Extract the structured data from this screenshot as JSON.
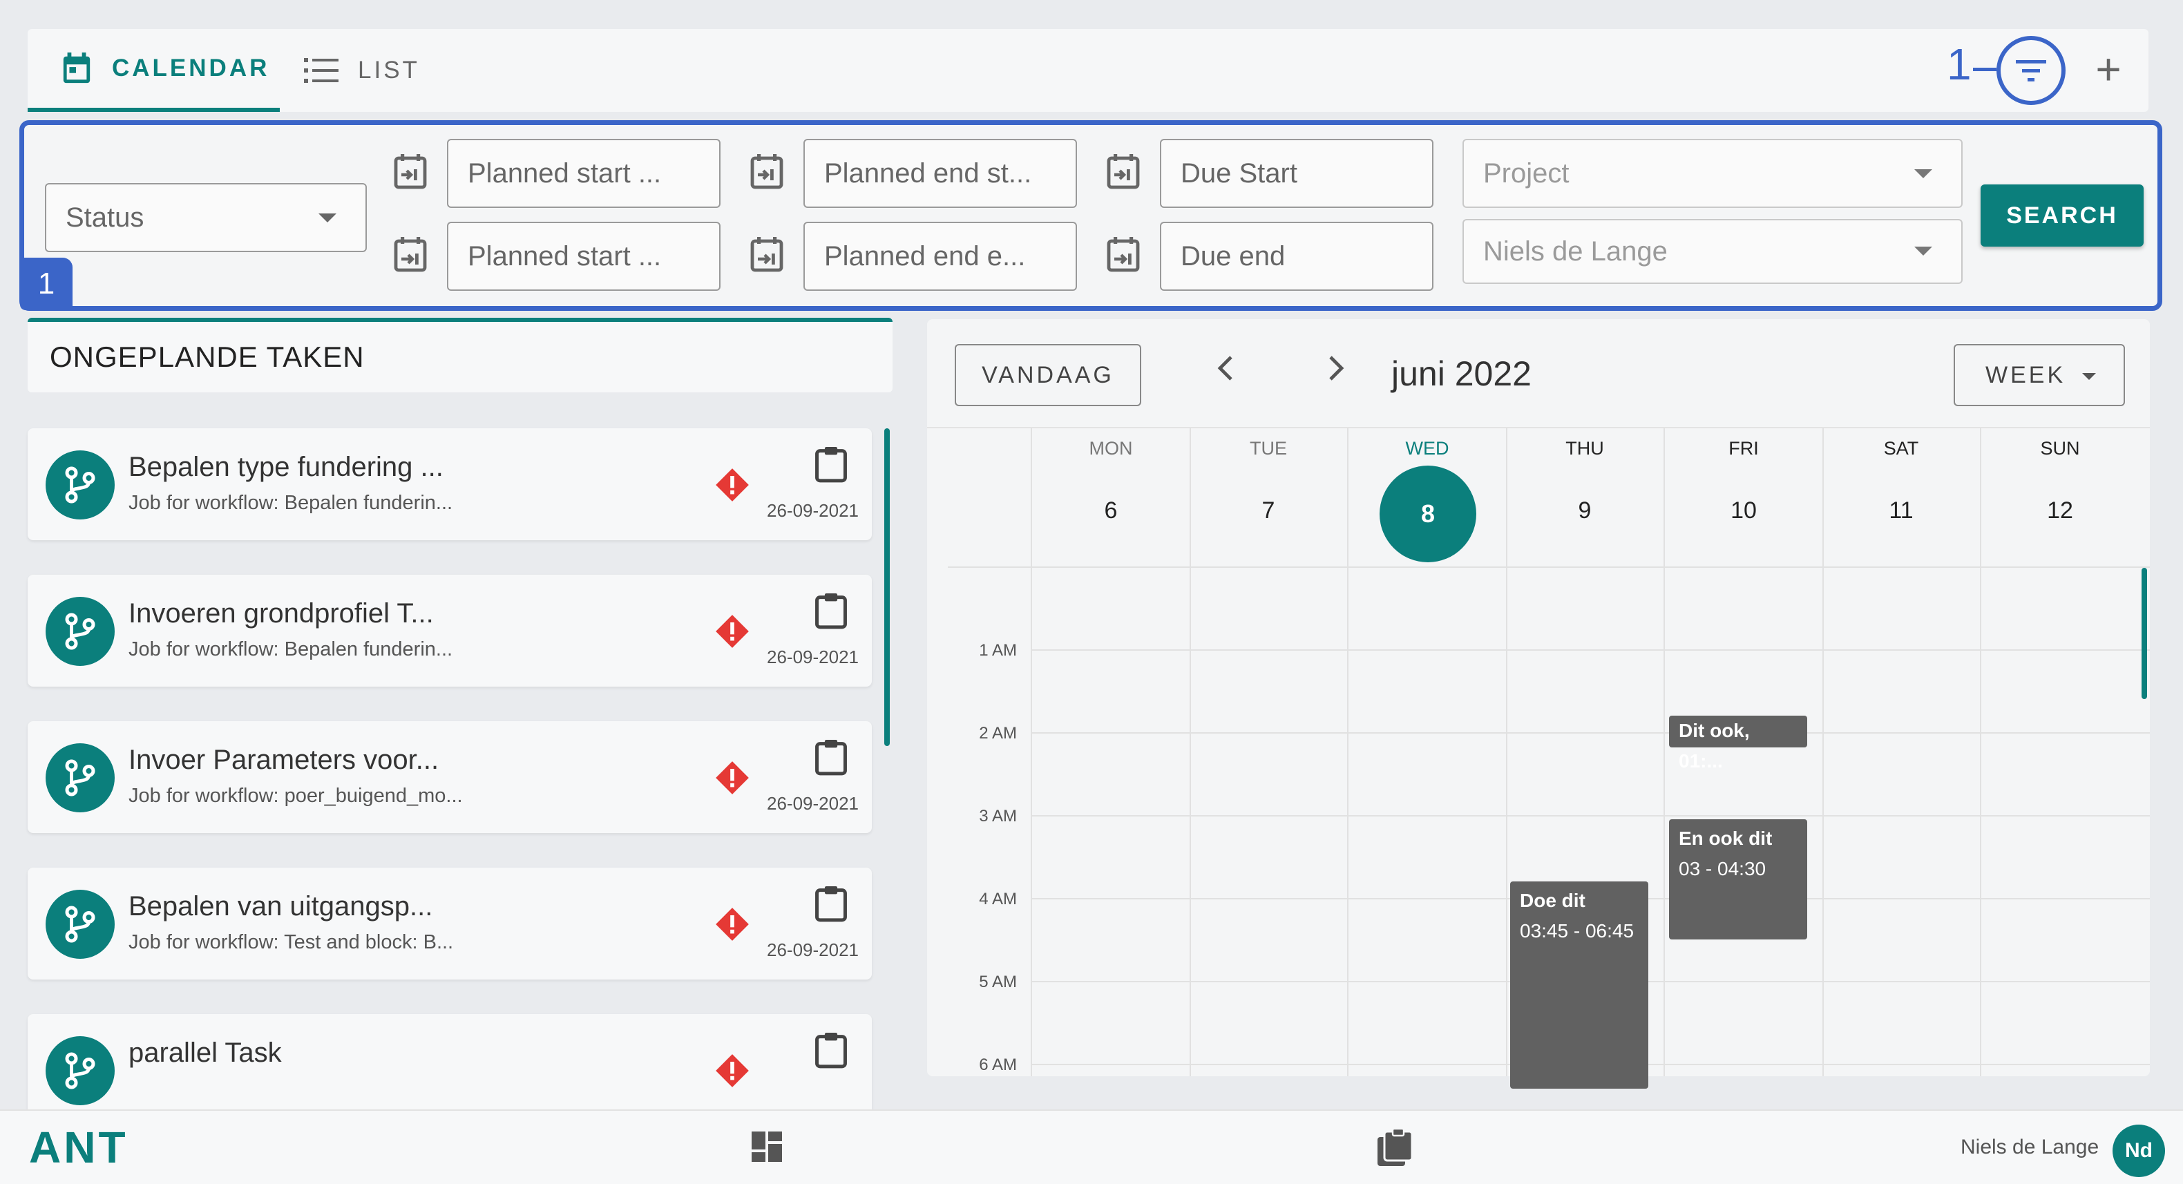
{
  "tabs": {
    "calendar": "CALENDAR",
    "list": "LIST"
  },
  "hints": {
    "filter_hint": "1",
    "panel_badge": "1"
  },
  "filters": {
    "status_placeholder": "Status",
    "planned_start_from": "Planned start ...",
    "planned_start_to": "Planned start ...",
    "planned_end_from": "Planned end st...",
    "planned_end_to": "Planned end e...",
    "due_start": "Due Start",
    "due_end": "Due end",
    "project_placeholder": "Project",
    "assignee": "Niels de Lange",
    "search_label": "SEARCH"
  },
  "unplanned": {
    "title": "ONGEPLANDE TAKEN",
    "tasks": [
      {
        "title": "Bepalen type fundering ...",
        "subtitle": "Job for workflow: Bepalen funderin...",
        "date": "26-09-2021"
      },
      {
        "title": "Invoeren grondprofiel T...",
        "subtitle": "Job for workflow: Bepalen funderin...",
        "date": "26-09-2021"
      },
      {
        "title": "Invoer Parameters voor...",
        "subtitle": "Job for workflow: poer_buigend_mo...",
        "date": "26-09-2021"
      },
      {
        "title": "Bepalen van uitgangsp...",
        "subtitle": "Job for workflow: Test and block: B...",
        "date": "26-09-2021"
      },
      {
        "title": "parallel Task",
        "subtitle": "",
        "date": ""
      }
    ]
  },
  "calendar": {
    "today_label": "VANDAAG",
    "month_label": "juni 2022",
    "view_label": "WEEK",
    "days": [
      {
        "dow": "MON",
        "num": "6"
      },
      {
        "dow": "TUE",
        "num": "7"
      },
      {
        "dow": "WED",
        "num": "8"
      },
      {
        "dow": "THU",
        "num": "9"
      },
      {
        "dow": "FRI",
        "num": "10"
      },
      {
        "dow": "SAT",
        "num": "11"
      },
      {
        "dow": "SUN",
        "num": "12"
      }
    ],
    "times": [
      "1 AM",
      "2 AM",
      "3 AM",
      "4 AM",
      "5 AM",
      "6 AM"
    ],
    "events": {
      "e1": {
        "title": "Dit ook, 01:...",
        "time": ""
      },
      "e2": {
        "title": "En ook dit",
        "time": "03 - 04:30"
      },
      "e3": {
        "title": "Doe dit",
        "time": "03:45 - 06:45"
      }
    }
  },
  "footer": {
    "logo": "ANT",
    "user_name": "Niels de Lange",
    "user_initials": "Nd"
  },
  "colors": {
    "accent": "#0b7f7c",
    "hint": "#3b65c8",
    "event": "#616161"
  }
}
